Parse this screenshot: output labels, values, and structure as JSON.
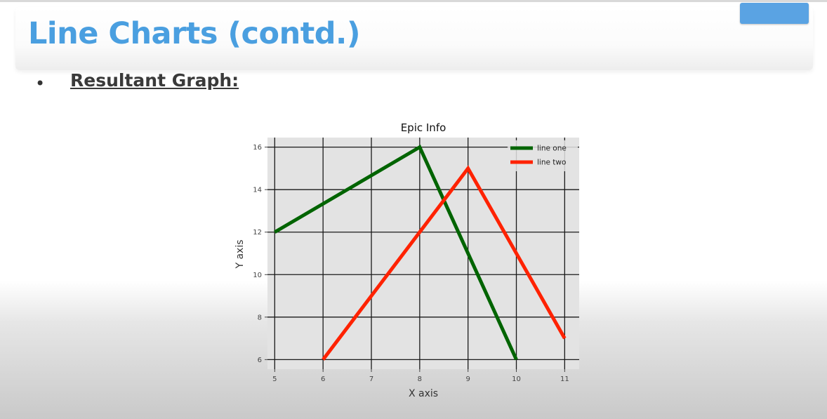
{
  "slide": {
    "title": "Line Charts (contd.)",
    "bullet": "Resultant Graph:"
  },
  "colors": {
    "title": "#4a9fe0",
    "plot_background": "#e3e3e3",
    "grid": "#1a1a1a",
    "line_one": "#006400",
    "line_two": "#ff2200"
  },
  "chart_data": {
    "type": "line",
    "title": "Epic Info",
    "xlabel": "X axis",
    "ylabel": "Y axis",
    "xlim": [
      4.85,
      11.3
    ],
    "ylim": [
      5.55,
      16.45
    ],
    "xticks": [
      5,
      6,
      7,
      8,
      9,
      10,
      11
    ],
    "yticks": [
      6,
      8,
      10,
      12,
      14,
      16
    ],
    "grid": true,
    "legend_position": "upper right",
    "series": [
      {
        "name": "line one",
        "color": "#006400",
        "x": [
          5,
          8,
          10
        ],
        "y": [
          12,
          16,
          6
        ]
      },
      {
        "name": "line two",
        "color": "#ff2200",
        "x": [
          6,
          9,
          11
        ],
        "y": [
          6,
          15,
          7
        ]
      }
    ]
  }
}
